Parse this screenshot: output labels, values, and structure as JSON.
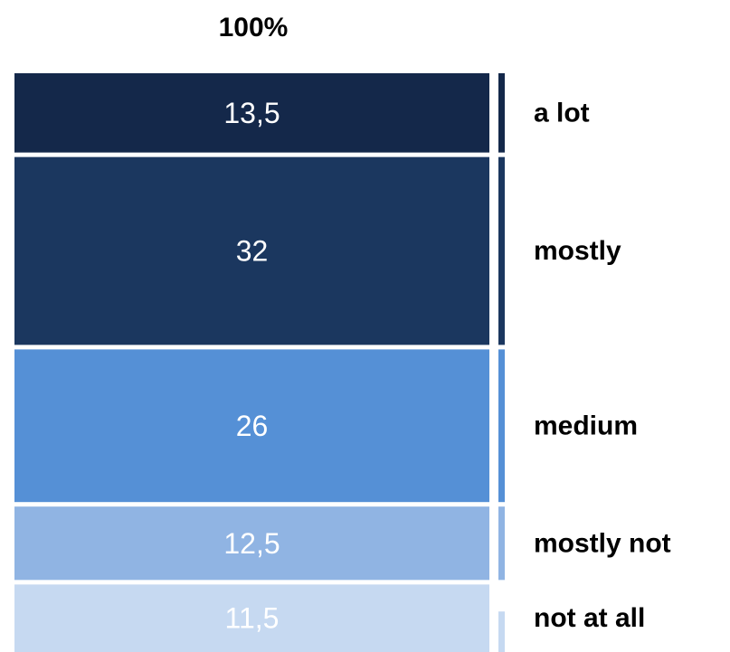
{
  "chart_data": {
    "type": "bar",
    "stacked": true,
    "title": "100%",
    "categories": [
      "a lot",
      "mostly",
      "medium",
      "mostly not",
      "not at all"
    ],
    "values": [
      13.5,
      32,
      26,
      12.5,
      11.5
    ],
    "value_labels": [
      "13,5",
      "32",
      "26",
      "12,5",
      "11,5"
    ],
    "colors": [
      "#14284a",
      "#1b375f",
      "#5590d6",
      "#90b4e3",
      "#c6d9f1"
    ],
    "xlabel": "",
    "ylabel": "",
    "grid": false,
    "legend": "right"
  }
}
